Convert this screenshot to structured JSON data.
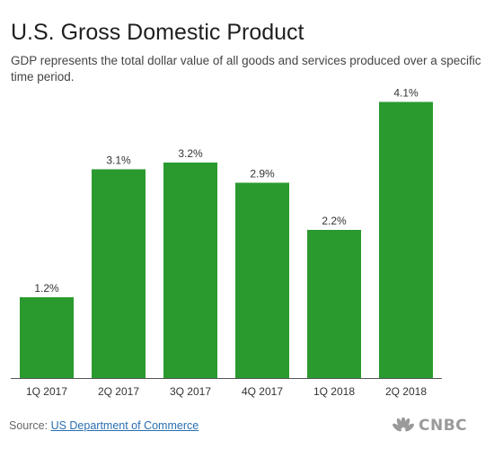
{
  "title": "U.S. Gross Domestic Product",
  "subtitle": "GDP represents the total dollar value of all goods and services produced over a specific time period.",
  "source_prefix": "Source: ",
  "source_link": "US Department of Commerce",
  "logo_text": "CNBC",
  "colors": {
    "bar": "#2a9a2e",
    "baseline": "#555555",
    "label": "#333333",
    "link": "#2a6fb0"
  },
  "chart_data": {
    "type": "bar",
    "categories": [
      "1Q 2017",
      "2Q 2017",
      "3Q 2017",
      "4Q 2017",
      "1Q 2018",
      "2Q 2018"
    ],
    "values": [
      1.2,
      3.1,
      3.2,
      2.9,
      2.2,
      4.1
    ],
    "data_labels": [
      "1.2%",
      "3.1%",
      "3.2%",
      "2.9%",
      "2.2%",
      "4.1%"
    ],
    "title": "U.S. Gross Domestic Product",
    "xlabel": "",
    "ylabel": "",
    "grid": false,
    "y_axis_shown": false
  }
}
